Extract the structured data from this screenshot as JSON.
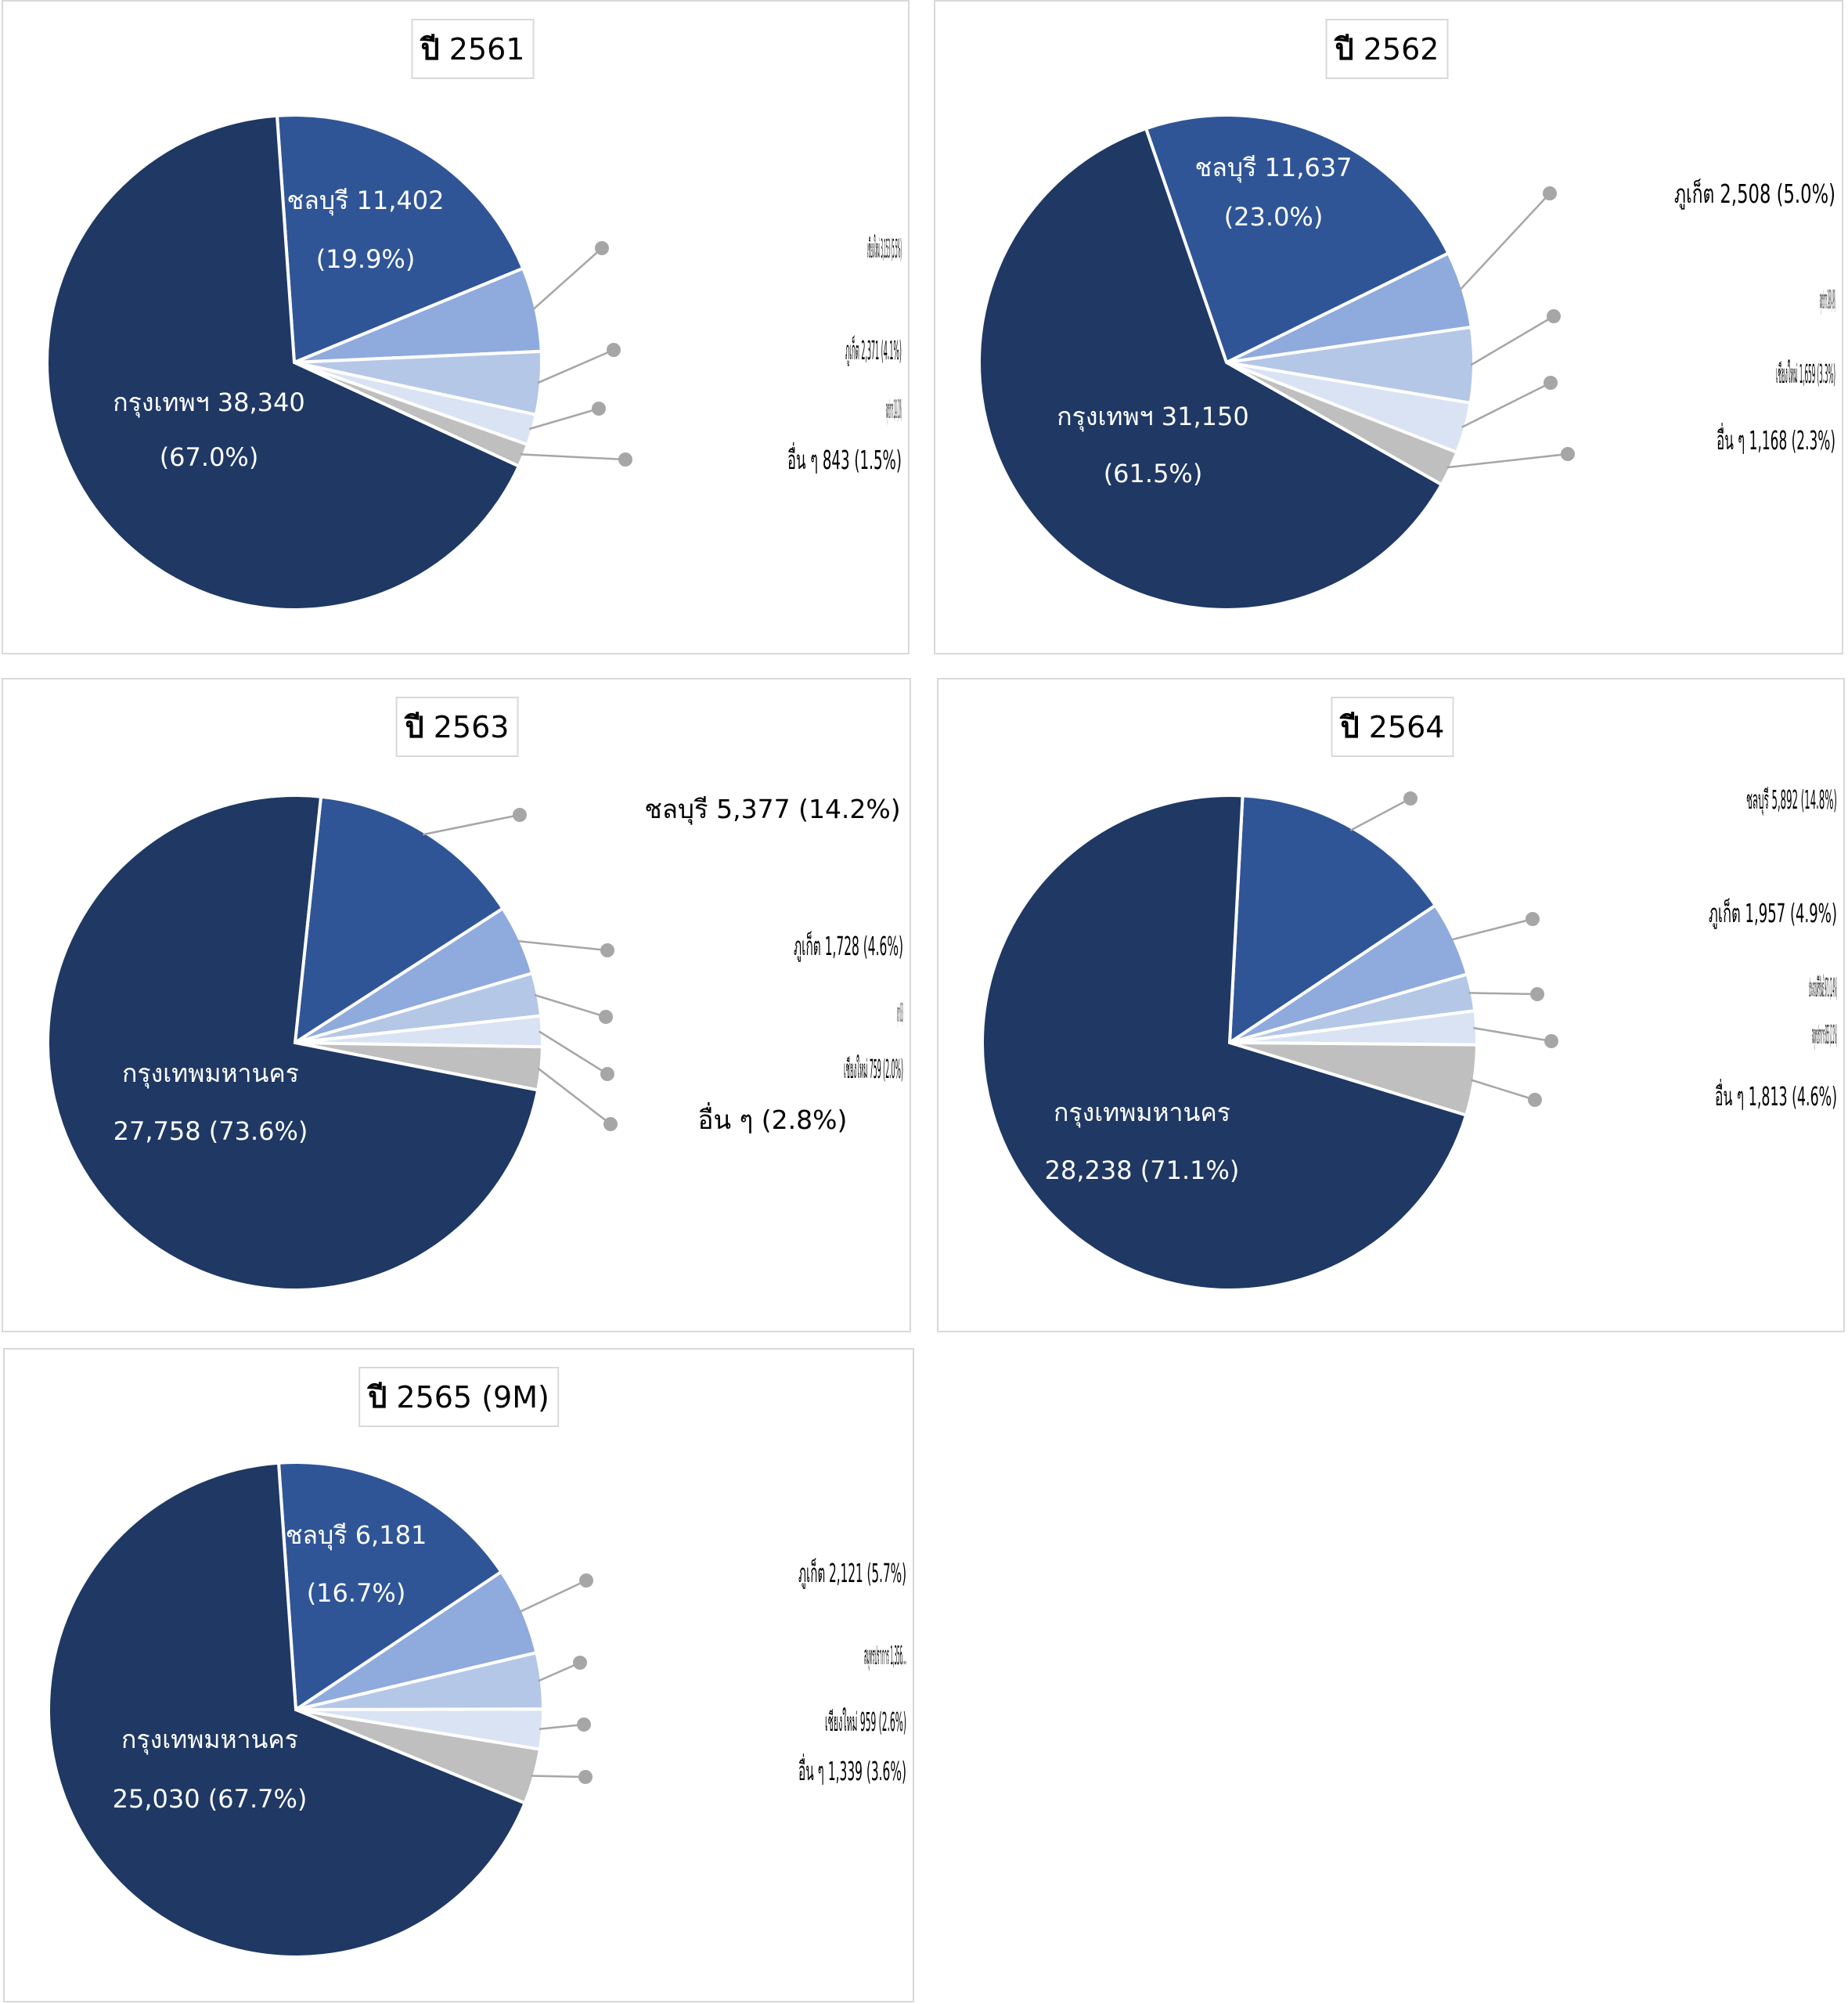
{
  "palette": {
    "slice_colors": [
      "#1f3864",
      "#2f5597",
      "#8faadc",
      "#b4c7e7",
      "#dae3f3",
      "#bfbfbf"
    ],
    "leader_color": "#a6a6a6",
    "border_color": "#d9d9d9",
    "slice_stroke": "#ffffff"
  },
  "chart_data": [
    {
      "type": "pie",
      "title": "ปี 2561",
      "title_year_word": "ปี",
      "title_rest": "2561",
      "slices": [
        {
          "name": "กรุงเทพฯ",
          "value": 38340,
          "percent": 67.0,
          "label": [
            "กรุงเทพฯ 38,340",
            "(67.0%)"
          ]
        },
        {
          "name": "ชลบุรี",
          "value": 11402,
          "percent": 19.9,
          "label": [
            "ชลบุรี 11,402",
            "(19.9%)"
          ]
        },
        {
          "name": "เชียงใหม่",
          "value": 3153,
          "percent": 5.5,
          "label": [
            "เชียงใหม่ 3,153 (5.5%)"
          ]
        },
        {
          "name": "ภูเก็ต",
          "value": 2371,
          "percent": 4.1,
          "label": [
            "ภูเก็ต 2,371 (4.1%)"
          ]
        },
        {
          "name": "สมุทรปราการ",
          "value": 1141,
          "percent": 2.0,
          "label": [
            "สมุทรปราการ 1,141 (2.0%)"
          ]
        },
        {
          "name": "อื่น ๆ",
          "value": 843,
          "percent": 1.5,
          "label": [
            "อื่น ๆ 843 (1.5%)"
          ]
        }
      ]
    },
    {
      "type": "pie",
      "title": "ปี 2562",
      "title_year_word": "ปี",
      "title_rest": "2562",
      "slices": [
        {
          "name": "กรุงเทพฯ",
          "value": 31150,
          "percent": 61.5,
          "label": [
            "กรุงเทพฯ 31,150",
            "(61.5%)"
          ]
        },
        {
          "name": "ชลบุรี",
          "value": 11637,
          "percent": 23.0,
          "label": [
            "ชลบุรี 11,637",
            "(23.0%)"
          ]
        },
        {
          "name": "ภูเก็ต",
          "value": 2508,
          "percent": 5.0,
          "label": [
            "ภูเก็ต 2,508 (5.0%)"
          ]
        },
        {
          "name": "สมุทรปราการ",
          "value": 2488,
          "percent": 4.9,
          "label": [
            "สมุทรปราการ 2,488 (4.9%)"
          ]
        },
        {
          "name": "เชียงใหม่",
          "value": 1659,
          "percent": 3.3,
          "label": [
            "เชียงใหม่ 1,659 (3.3%)"
          ]
        },
        {
          "name": "อื่น ๆ",
          "value": 1168,
          "percent": 2.3,
          "label": [
            "อื่น ๆ 1,168 (2.3%)"
          ]
        }
      ]
    },
    {
      "type": "pie",
      "title": "ปี 2563",
      "title_year_word": "ปี",
      "title_rest": "2563",
      "slices": [
        {
          "name": "กรุงเทพมหานคร",
          "value": 27758,
          "percent": 73.6,
          "label": [
            "กรุงเทพมหานคร",
            "27,758 (73.6%)"
          ]
        },
        {
          "name": "ชลบุรี",
          "value": 5377,
          "percent": 14.2,
          "label": [
            "ชลบุรี 5,377 (14.2%)"
          ]
        },
        {
          "name": "ภูเก็ต",
          "value": 1728,
          "percent": 4.6,
          "label": [
            "ภูเก็ต 1,728 (4.6%)"
          ]
        },
        {
          "name": "สมุทรปราการ",
          "value": 1060,
          "percent": 2.8,
          "label": [
            "สมุทรปราการ 1,060 (2.8%)"
          ]
        },
        {
          "name": "เชียงใหม่",
          "value": 759,
          "percent": 2.0,
          "label": [
            "เชียงใหม่ 759 (2.0%)"
          ]
        },
        {
          "name": "อื่น ๆ",
          "value": null,
          "percent": 2.8,
          "label": [
            "อื่น ๆ (2.8%)"
          ]
        }
      ]
    },
    {
      "type": "pie",
      "title": "ปี 2564",
      "title_year_word": "ปี",
      "title_rest": "2564",
      "slices": [
        {
          "name": "กรุงเทพมหานคร",
          "value": 28238,
          "percent": 71.1,
          "label": [
            "กรุงเทพมหานคร",
            "28,238 (71.1%)"
          ]
        },
        {
          "name": "ชลบุรี",
          "value": 5892,
          "percent": 14.8,
          "label": [
            "ชลบุรี 5,892 (14.8%)"
          ]
        },
        {
          "name": "ภูเก็ต",
          "value": 1957,
          "percent": 4.9,
          "label": [
            "ภูเก็ต 1,957 (4.9%)"
          ]
        },
        {
          "name": "ประจวบคีรีขันธ์",
          "value": 971,
          "percent": 2.4,
          "label": [
            "ประจวบคีรีขันธ์ 971 (2.4%)"
          ]
        },
        {
          "name": "สมุทรปราการ",
          "value": 855,
          "percent": 2.2,
          "label": [
            "สมุทรปราการ 855 (2.2%)"
          ]
        },
        {
          "name": "อื่น ๆ",
          "value": 1813,
          "percent": 4.6,
          "label": [
            "อื่น ๆ 1,813 (4.6%)"
          ]
        }
      ]
    },
    {
      "type": "pie",
      "title": "ปี 2565 (9M)",
      "title_year_word": "ปี",
      "title_rest": "2565 (9M)",
      "slices": [
        {
          "name": "กรุงเทพมหานคร",
          "value": 25030,
          "percent": 67.7,
          "label": [
            "กรุงเทพมหานคร",
            "25,030  (67.7%)"
          ]
        },
        {
          "name": "ชลบุรี",
          "value": 6181,
          "percent": 16.7,
          "label": [
            "ชลบุรี  6,181",
            "(16.7%)"
          ]
        },
        {
          "name": "ภูเก็ต",
          "value": 2121,
          "percent": 5.7,
          "label": [
            "ภูเก็ต  2,121  (5.7%)"
          ]
        },
        {
          "name": "สมุทรปราการ",
          "value": 1356,
          "percent": null,
          "label": [
            "สมุทรปราการ  1,356..."
          ]
        },
        {
          "name": "เชียงใหม่",
          "value": 959,
          "percent": 2.6,
          "label": [
            "เชียงใหม่  959  (2.6%)"
          ]
        },
        {
          "name": "อื่น ๆ",
          "value": 1339,
          "percent": 3.6,
          "label": [
            "อื่น ๆ  1,339  (3.6%)"
          ]
        }
      ]
    }
  ]
}
